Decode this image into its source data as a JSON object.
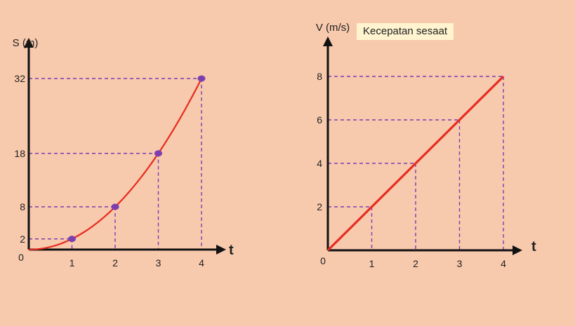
{
  "chart_data": [
    {
      "type": "line",
      "title": "",
      "xlabel": "t",
      "ylabel": "S (m)",
      "origin_label": "0",
      "x_ticks": [
        1,
        2,
        3,
        4
      ],
      "y_ticks": [
        2,
        8,
        18,
        32
      ],
      "x": [
        0,
        1,
        2,
        3,
        4
      ],
      "values": [
        0,
        2,
        8,
        18,
        32
      ],
      "marked_points": [
        {
          "x": 1,
          "y": 2
        },
        {
          "x": 2,
          "y": 8
        },
        {
          "x": 3,
          "y": 18
        },
        {
          "x": 4,
          "y": 32
        }
      ],
      "curve": "parabola",
      "line_color": "#e82b1f",
      "point_color": "#7b3fb0",
      "guide_color": "#7b3fb0",
      "xlim": [
        0,
        4
      ],
      "ylim": [
        0,
        32
      ]
    },
    {
      "type": "line",
      "title": "",
      "xlabel": "t",
      "ylabel": "V (m/s)",
      "origin_label": "0",
      "annotation": "Kecepatan sesaat",
      "x_ticks": [
        1,
        2,
        3,
        4
      ],
      "y_ticks": [
        2,
        4,
        6,
        8
      ],
      "x": [
        0,
        1,
        2,
        3,
        4
      ],
      "values": [
        0,
        2,
        4,
        6,
        8
      ],
      "line_color": "#e82b1f",
      "guide_color": "#7b3fb0",
      "xlim": [
        0,
        4
      ],
      "ylim": [
        0,
        8
      ]
    }
  ]
}
